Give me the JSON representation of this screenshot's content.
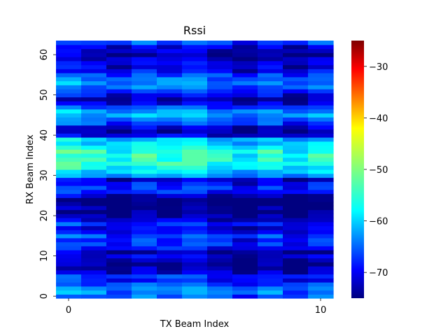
{
  "chart_data": {
    "type": "heatmap",
    "title": "Rssi",
    "xlabel": "TX Beam Index",
    "ylabel": "RX Beam Index",
    "x_ticks": [
      0,
      10
    ],
    "y_ticks": [
      0,
      10,
      20,
      30,
      40,
      50,
      60
    ],
    "n_tx": 11,
    "n_rx": 64,
    "colormap": "jet",
    "color_range": [
      -75,
      -25
    ],
    "colorbar_ticks": [
      -70,
      -60,
      -50,
      -40,
      -30
    ],
    "tx_offset": [
      -1,
      -3,
      -5,
      -2,
      -3,
      -1,
      -4,
      -6,
      -3,
      -6,
      -3
    ],
    "rx_profile": [
      -61,
      -59,
      -59,
      -62,
      -65,
      -63,
      -68,
      -70,
      -71,
      -69,
      -67,
      -70,
      -65,
      -63,
      -64,
      -62,
      -66,
      -67,
      -64,
      -68,
      -70,
      -72,
      -71,
      -72,
      -73,
      -69,
      -64,
      -63,
      -65,
      -68,
      -58,
      -55,
      -53,
      -51,
      -51,
      -51,
      -51,
      -53,
      -55,
      -56,
      -67,
      -70,
      -68,
      -62,
      -60,
      -57,
      -58,
      -62,
      -67,
      -70,
      -66,
      -63,
      -60,
      -59,
      -60,
      -62,
      -66,
      -67,
      -66,
      -68,
      -70,
      -68,
      -67,
      -62
    ]
  }
}
